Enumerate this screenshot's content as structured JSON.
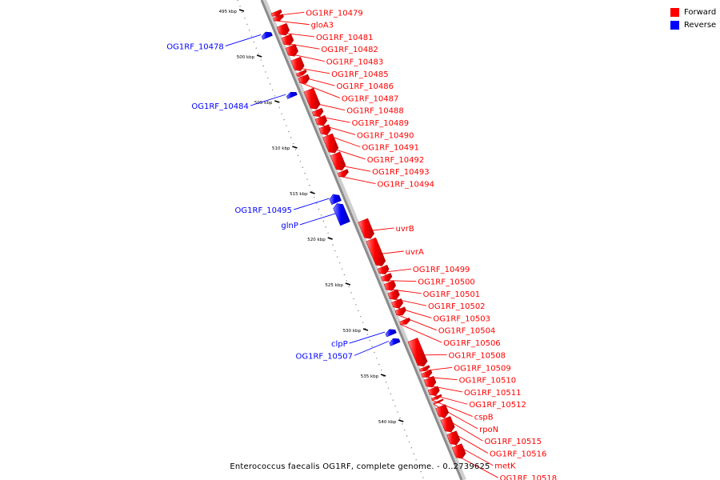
{
  "legend": [
    {
      "label": "Forward",
      "color": "#ff0000"
    },
    {
      "label": "Reverse",
      "color": "#0000ff"
    }
  ],
  "caption": "Enterococcus faecalis OG1RF, complete genome. - 0..2739625",
  "map": {
    "tick_unit": "kbp",
    "ticks": [
      495,
      500,
      505,
      510,
      515,
      520,
      525,
      530,
      535,
      540
    ]
  },
  "genes": [
    {
      "label": "OG1RF_10479",
      "strand": "forward",
      "kbp_start": 495.5,
      "kbp_end": 496.0
    },
    {
      "label": "gloA3",
      "strand": "forward",
      "kbp_start": 496.0,
      "kbp_end": 496.5
    },
    {
      "label": "OG1RF_10478",
      "strand": "reverse",
      "kbp_start": 497.0,
      "kbp_end": 497.6
    },
    {
      "label": "OG1RF_10481",
      "strand": "forward",
      "kbp_start": 497.0,
      "kbp_end": 498.1
    },
    {
      "label": "OG1RF_10482",
      "strand": "forward",
      "kbp_start": 498.2,
      "kbp_end": 499.2
    },
    {
      "label": "OG1RF_10483",
      "strand": "forward",
      "kbp_start": 499.3,
      "kbp_end": 500.4
    },
    {
      "label": "OG1RF_10485",
      "strand": "forward",
      "kbp_start": 500.7,
      "kbp_end": 502.0
    },
    {
      "label": "OG1RF_10486",
      "strand": "forward",
      "kbp_start": 502.1,
      "kbp_end": 502.5
    },
    {
      "label": "OG1RF_10487",
      "strand": "forward",
      "kbp_start": 502.6,
      "kbp_end": 503.4
    },
    {
      "label": "OG1RF_10484",
      "strand": "reverse",
      "kbp_start": 503.6,
      "kbp_end": 504.1
    },
    {
      "label": "OG1RF_10488",
      "strand": "forward",
      "kbp_start": 504.1,
      "kbp_end": 506.2
    },
    {
      "label": "OG1RF_10489",
      "strand": "forward",
      "kbp_start": 506.3,
      "kbp_end": 507.0
    },
    {
      "label": "OG1RF_10490",
      "strand": "forward",
      "kbp_start": 507.1,
      "kbp_end": 508.0
    },
    {
      "label": "OG1RF_10491",
      "strand": "forward",
      "kbp_start": 508.1,
      "kbp_end": 509.0
    },
    {
      "label": "OG1RF_10492",
      "strand": "forward",
      "kbp_start": 509.1,
      "kbp_end": 511.0
    },
    {
      "label": "OG1RF_10493",
      "strand": "forward",
      "kbp_start": 511.1,
      "kbp_end": 512.9
    },
    {
      "label": "OG1RF_10494",
      "strand": "forward",
      "kbp_start": 513.0,
      "kbp_end": 513.6
    },
    {
      "label": "OG1RF_10495",
      "strand": "reverse",
      "kbp_start": 514.8,
      "kbp_end": 515.7
    },
    {
      "label": "glnP",
      "strand": "reverse",
      "kbp_start": 515.8,
      "kbp_end": 518.0
    },
    {
      "label": "uvrB",
      "strand": "forward",
      "kbp_start": 518.4,
      "kbp_end": 520.4
    },
    {
      "label": "uvrA",
      "strand": "forward",
      "kbp_start": 520.5,
      "kbp_end": 523.4
    },
    {
      "label": "OG1RF_10499",
      "strand": "forward",
      "kbp_start": 523.5,
      "kbp_end": 524.3
    },
    {
      "label": "OG1RF_10500",
      "strand": "forward",
      "kbp_start": 524.4,
      "kbp_end": 525.1
    },
    {
      "label": "OG1RF_10501",
      "strand": "forward",
      "kbp_start": 525.2,
      "kbp_end": 526.1
    },
    {
      "label": "OG1RF_10502",
      "strand": "forward",
      "kbp_start": 526.2,
      "kbp_end": 527.1
    },
    {
      "label": "OG1RF_10503",
      "strand": "forward",
      "kbp_start": 527.2,
      "kbp_end": 528.0
    },
    {
      "label": "OG1RF_10504",
      "strand": "forward",
      "kbp_start": 528.1,
      "kbp_end": 528.8
    },
    {
      "label": "OG1RF_10506",
      "strand": "forward",
      "kbp_start": 529.3,
      "kbp_end": 529.8
    },
    {
      "label": "clpP",
      "strand": "reverse",
      "kbp_start": 529.6,
      "kbp_end": 530.2
    },
    {
      "label": "OG1RF_10507",
      "strand": "reverse",
      "kbp_start": 530.6,
      "kbp_end": 531.2
    },
    {
      "label": "OG1RF_10508",
      "strand": "forward",
      "kbp_start": 531.5,
      "kbp_end": 534.4
    },
    {
      "label": "OG1RF_10509",
      "strand": "forward",
      "kbp_start": 534.5,
      "kbp_end": 534.9
    },
    {
      "label": "OG1RF_10510",
      "strand": "forward",
      "kbp_start": 535.0,
      "kbp_end": 535.6
    },
    {
      "label": "OG1RF_10511",
      "strand": "forward",
      "kbp_start": 535.7,
      "kbp_end": 536.7
    },
    {
      "label": "OG1RF_10512",
      "strand": "forward",
      "kbp_start": 536.8,
      "kbp_end": 537.6
    },
    {
      "label": "cspB",
      "strand": "forward",
      "kbp_start": 537.7,
      "kbp_end": 538.0
    },
    {
      "label": "rpoN",
      "strand": "forward",
      "kbp_start": 538.2,
      "kbp_end": 538.4
    },
    {
      "label": "OG1RF_10515",
      "strand": "forward",
      "kbp_start": 538.8,
      "kbp_end": 540.0
    },
    {
      "label": "OG1RF_10516",
      "strand": "forward",
      "kbp_start": 540.1,
      "kbp_end": 541.6
    },
    {
      "label": "metK",
      "strand": "forward",
      "kbp_start": 541.7,
      "kbp_end": 543.0
    },
    {
      "label": "OG1RF_10518",
      "strand": "forward",
      "kbp_start": 543.1,
      "kbp_end": 544.5
    }
  ]
}
